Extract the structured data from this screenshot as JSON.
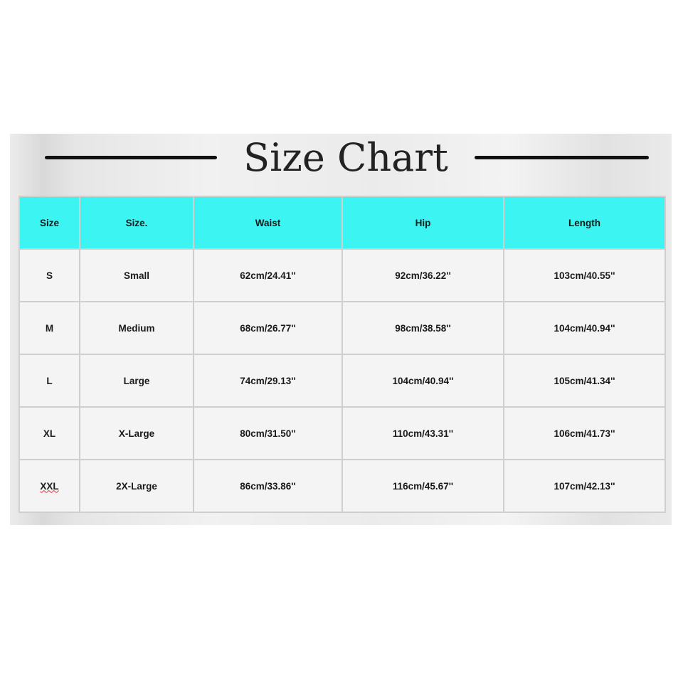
{
  "title": "Size Chart",
  "colors": {
    "header_bg": "#3cf5f2",
    "text": "#1a1a1a"
  },
  "table": {
    "headers": [
      "Size",
      "Size.",
      "Waist",
      "Hip",
      "Length"
    ],
    "rows": [
      [
        "S",
        "Small",
        "62cm/24.41''",
        "92cm/36.22''",
        "103cm/40.55''"
      ],
      [
        "M",
        "Medium",
        "68cm/26.77''",
        "98cm/38.58''",
        "104cm/40.94''"
      ],
      [
        "L",
        "Large",
        "74cm/29.13''",
        "104cm/40.94''",
        "105cm/41.34''"
      ],
      [
        "XL",
        "X-Large",
        "80cm/31.50''",
        "110cm/43.31''",
        "106cm/41.73''"
      ],
      [
        "XXL",
        "2X-Large",
        "86cm/33.86''",
        "116cm/45.67''",
        "107cm/42.13''"
      ]
    ]
  }
}
